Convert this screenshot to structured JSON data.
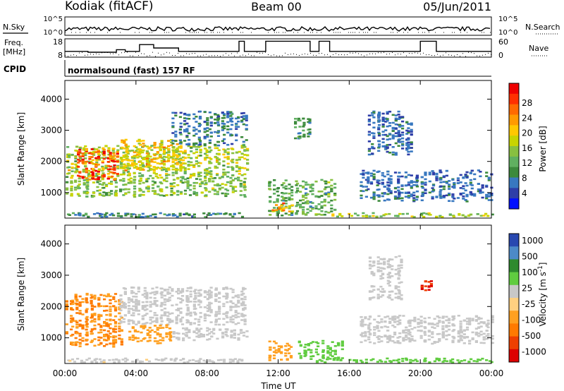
{
  "header": {
    "station": "Kodiak (fitACF)",
    "beam": "Beam 00",
    "date": "05/Jun/2011"
  },
  "status_panels": {
    "nsky_label": "N.Sky",
    "freq_label_line1": "Freq.",
    "freq_label_line2": "[MHz]",
    "cpid_label": "CPID",
    "cpid_text": "normalsound (fast) 157 RF",
    "nsearch_label": "N.Search",
    "nave_label": "Nave",
    "noise_ticks": [
      "10^5",
      "10^0"
    ],
    "freq_ticks": [
      "18",
      "8"
    ],
    "nave_ticks": [
      "60",
      "0"
    ],
    "freq_range_mhz": [
      8,
      18
    ],
    "freq_steps": [
      {
        "t0": 0.0,
        "t1": 1.3,
        "f": 11.0
      },
      {
        "t0": 1.3,
        "t1": 2.9,
        "f": 10.5
      },
      {
        "t0": 2.9,
        "t1": 3.4,
        "f": 12.0
      },
      {
        "t0": 3.4,
        "t1": 4.2,
        "f": 11.0
      },
      {
        "t0": 4.2,
        "t1": 5.0,
        "f": 15.0
      },
      {
        "t0": 5.0,
        "t1": 6.4,
        "f": 13.0
      },
      {
        "t0": 6.4,
        "t1": 9.8,
        "f": 11.0
      },
      {
        "t0": 9.8,
        "t1": 10.1,
        "f": 17.0
      },
      {
        "t0": 10.1,
        "t1": 11.3,
        "f": 11.0
      },
      {
        "t0": 11.3,
        "t1": 13.8,
        "f": 17.0
      },
      {
        "t0": 13.8,
        "t1": 14.3,
        "f": 11.0
      },
      {
        "t0": 14.3,
        "t1": 14.9,
        "f": 17.0
      },
      {
        "t0": 14.9,
        "t1": 20.0,
        "f": 11.0
      },
      {
        "t0": 20.0,
        "t1": 20.9,
        "f": 17.0
      },
      {
        "t0": 20.9,
        "t1": 24.0,
        "f": 11.0
      }
    ]
  },
  "chart_data": [
    {
      "type": "heatmap",
      "title": "",
      "xlabel": "Time UT",
      "ylabel": "Slant Range [km]",
      "xlim_hours": [
        0,
        24
      ],
      "ylim_km": [
        180,
        4600
      ],
      "x_ticks": [
        "00:00",
        "04:00",
        "08:00",
        "12:00",
        "16:00",
        "20:00",
        "00:00"
      ],
      "y_ticks": [
        1000,
        2000,
        3000,
        4000
      ],
      "colorbar": {
        "label": "Power [dB]",
        "ticks": [
          "28",
          "24",
          "20",
          "16",
          "12",
          "8",
          "4"
        ],
        "range": [
          0,
          30
        ],
        "colors": [
          "#0010ff",
          "#2e3ea8",
          "#3878c0",
          "#3c8a3c",
          "#60b060",
          "#88c040",
          "#c8d400",
          "#ffc800",
          "#ff9a00",
          "#ff6a00",
          "#ff3000",
          "#ee0000"
        ]
      },
      "echo_regions": [
        {
          "t0": 0.0,
          "t1": 10.0,
          "r0": 200,
          "r1": 330,
          "v": 8
        },
        {
          "t0": 0.0,
          "t1": 10.2,
          "r0": 850,
          "r1": 1500,
          "v": 13
        },
        {
          "t0": 0.0,
          "t1": 10.2,
          "r0": 1500,
          "r1": 2500,
          "v": 15
        },
        {
          "t0": 0.6,
          "t1": 3.0,
          "r0": 1400,
          "r1": 2400,
          "v": 25
        },
        {
          "t0": 3.0,
          "t1": 6.5,
          "r0": 1700,
          "r1": 2700,
          "v": 18
        },
        {
          "t0": 6.0,
          "t1": 10.2,
          "r0": 2500,
          "r1": 3600,
          "v": 7
        },
        {
          "t0": 11.3,
          "t1": 15.2,
          "r0": 250,
          "r1": 1400,
          "v": 11
        },
        {
          "t0": 11.6,
          "t1": 12.8,
          "r0": 350,
          "r1": 650,
          "v": 21
        },
        {
          "t0": 12.8,
          "t1": 13.8,
          "r0": 2700,
          "r1": 3400,
          "v": 9
        },
        {
          "t0": 15.0,
          "t1": 24.0,
          "r0": 200,
          "r1": 330,
          "v": 14
        },
        {
          "t0": 16.5,
          "t1": 24.0,
          "r0": 700,
          "r1": 1700,
          "v": 6
        },
        {
          "t0": 17.0,
          "t1": 19.5,
          "r0": 2200,
          "r1": 3600,
          "v": 6
        }
      ]
    },
    {
      "type": "heatmap",
      "title": "",
      "xlabel": "Time UT",
      "ylabel": "Slant Range [km]",
      "xlim_hours": [
        0,
        24
      ],
      "ylim_km": [
        180,
        4600
      ],
      "x_ticks": [
        "00:00",
        "04:00",
        "08:00",
        "12:00",
        "16:00",
        "20:00",
        "00:00"
      ],
      "y_ticks": [
        1000,
        2000,
        3000,
        4000
      ],
      "colorbar": {
        "label": "Velocity [m s^-1]",
        "ticks": [
          "1000",
          "500",
          "100",
          "25",
          "-25",
          "-100",
          "-500",
          "-1000"
        ],
        "colors": [
          "#2848b0",
          "#4c8ac8",
          "#2e8a2e",
          "#60cc40",
          "#c8c8c8",
          "#ffd080",
          "#ffa020",
          "#ff7a00",
          "#ee4000",
          "#dd0000"
        ]
      },
      "echo_regions": [
        {
          "t0": 0.0,
          "t1": 10.0,
          "r0": 200,
          "r1": 330,
          "v": -20
        },
        {
          "t0": 0.0,
          "t1": 3.2,
          "r0": 700,
          "r1": 2400,
          "v": -300
        },
        {
          "t0": 3.0,
          "t1": 10.2,
          "r0": 1400,
          "r1": 2600,
          "v": 0
        },
        {
          "t0": 3.5,
          "t1": 6.0,
          "r0": 800,
          "r1": 1400,
          "v": -200
        },
        {
          "t0": 6.0,
          "t1": 10.2,
          "r0": 900,
          "r1": 1300,
          "v": 0
        },
        {
          "t0": 11.3,
          "t1": 12.8,
          "r0": 250,
          "r1": 900,
          "v": -200
        },
        {
          "t0": 13.0,
          "t1": 15.6,
          "r0": 300,
          "r1": 900,
          "v": 80
        },
        {
          "t0": 14.0,
          "t1": 24.0,
          "r0": 200,
          "r1": 330,
          "v": 60
        },
        {
          "t0": 16.5,
          "t1": 24.0,
          "r0": 800,
          "r1": 1700,
          "v": 0
        },
        {
          "t0": 17.0,
          "t1": 19.0,
          "r0": 2200,
          "r1": 3600,
          "v": 0
        },
        {
          "t0": 20.0,
          "t1": 20.6,
          "r0": 2500,
          "r1": 2800,
          "v": -800
        }
      ]
    }
  ]
}
